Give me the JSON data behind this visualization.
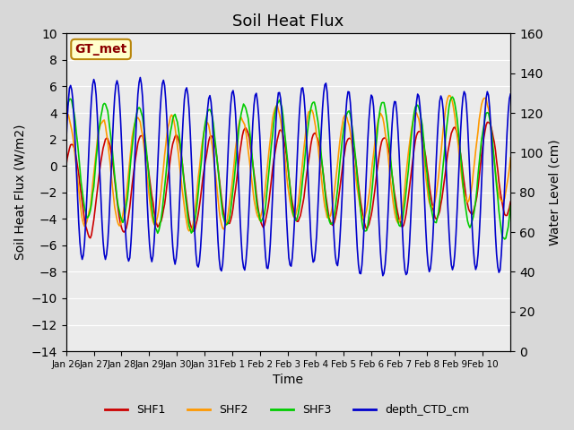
{
  "title": "Soil Heat Flux",
  "xlabel": "Time",
  "ylabel_left": "Soil Heat Flux (W/m2)",
  "ylabel_right": "Water Level (cm)",
  "ylim_left": [
    -14,
    10
  ],
  "ylim_right": [
    0,
    160
  ],
  "yticks_left": [
    -14,
    -12,
    -10,
    -8,
    -6,
    -4,
    -2,
    0,
    2,
    4,
    6,
    8,
    10
  ],
  "yticks_right": [
    0,
    20,
    40,
    60,
    80,
    100,
    120,
    140,
    160
  ],
  "fig_facecolor": "#d8d8d8",
  "ax_facecolor": "#ebebeb",
  "colors": {
    "SHF1": "#cc0000",
    "SHF2": "#ff9900",
    "SHF3": "#00cc00",
    "depth_CTD_cm": "#0000cc"
  },
  "legend_label": "GT_met",
  "legend_text_color": "#8b0000",
  "legend_box_facecolor": "#ffffcc",
  "legend_box_edgecolor": "#b8860b",
  "line_width": 1.2,
  "xtick_labels": [
    "Jan 26",
    "Jan 27",
    "Jan 28",
    "Jan 29",
    "Jan 30",
    "Jan 31",
    "Feb 1",
    "Feb 2",
    "Feb 3",
    "Feb 4",
    "Feb 5",
    "Feb 6",
    "Feb 7",
    "Feb 8",
    "Feb 9",
    "Feb 10"
  ],
  "n_days": 16
}
